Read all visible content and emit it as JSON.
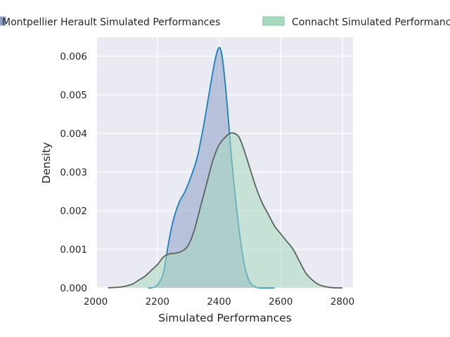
{
  "chart_data": {
    "type": "area",
    "title": "",
    "xlabel": "Simulated Performances",
    "ylabel": "Density",
    "xlim": [
      2000,
      2820
    ],
    "ylim": [
      0,
      0.0065
    ],
    "grid": true,
    "legend_placement": "top, above plot",
    "x_ticks": [
      2000,
      2200,
      2400,
      2600,
      2800
    ],
    "x_tick_labels": [
      "2000",
      "2200",
      "2400",
      "2600",
      "2800"
    ],
    "y_ticks": [
      0,
      0.001,
      0.002,
      0.003,
      0.004,
      0.005,
      0.006
    ],
    "y_tick_labels": [
      "0.000",
      "0.001",
      "0.002",
      "0.003",
      "0.004",
      "0.005",
      "0.006"
    ],
    "series": [
      {
        "name": "Montpellier Herault Simulated Performances",
        "fill_color": "#8c9fc5",
        "line_color": "#1a80bb",
        "x": [
          2170,
          2190,
          2205,
          2220,
          2235,
          2250,
          2270,
          2290,
          2310,
          2330,
          2350,
          2365,
          2380,
          2390,
          2398,
          2404,
          2410,
          2420,
          2430,
          2440,
          2455,
          2470,
          2485,
          2500,
          2520,
          2540,
          2560,
          2580
        ],
        "y": [
          0,
          2e-05,
          0.00013,
          0.0004,
          0.0011,
          0.0017,
          0.0022,
          0.0025,
          0.0029,
          0.0034,
          0.0042,
          0.0049,
          0.0056,
          0.006,
          0.0062,
          0.0062,
          0.006,
          0.0053,
          0.0044,
          0.0034,
          0.0022,
          0.0012,
          0.0005,
          0.00015,
          2e-05,
          0,
          0,
          0
        ]
      },
      {
        "name": "Connacht Simulated Performances",
        "fill_color": "#a8d8bf",
        "line_color": "#5a6360",
        "x": [
          2040,
          2060,
          2080,
          2100,
          2120,
          2140,
          2160,
          2180,
          2200,
          2220,
          2240,
          2260,
          2280,
          2300,
          2320,
          2340,
          2360,
          2380,
          2400,
          2420,
          2435,
          2450,
          2465,
          2480,
          2500,
          2520,
          2540,
          2560,
          2580,
          2600,
          2620,
          2640,
          2660,
          2680,
          2700,
          2720,
          2740,
          2760,
          2780,
          2800
        ],
        "y": [
          0,
          1e-05,
          2e-05,
          5e-05,
          0.0001,
          0.0002,
          0.0003,
          0.00045,
          0.0006,
          0.0008,
          0.00088,
          0.0009,
          0.00095,
          0.0011,
          0.0015,
          0.0021,
          0.0027,
          0.0033,
          0.0037,
          0.0039,
          0.004,
          0.004,
          0.0039,
          0.0036,
          0.0031,
          0.0026,
          0.0022,
          0.0019,
          0.0016,
          0.0014,
          0.0012,
          0.001,
          0.0007,
          0.0004,
          0.00022,
          0.0001,
          4e-05,
          1e-05,
          0,
          0
        ]
      }
    ]
  }
}
